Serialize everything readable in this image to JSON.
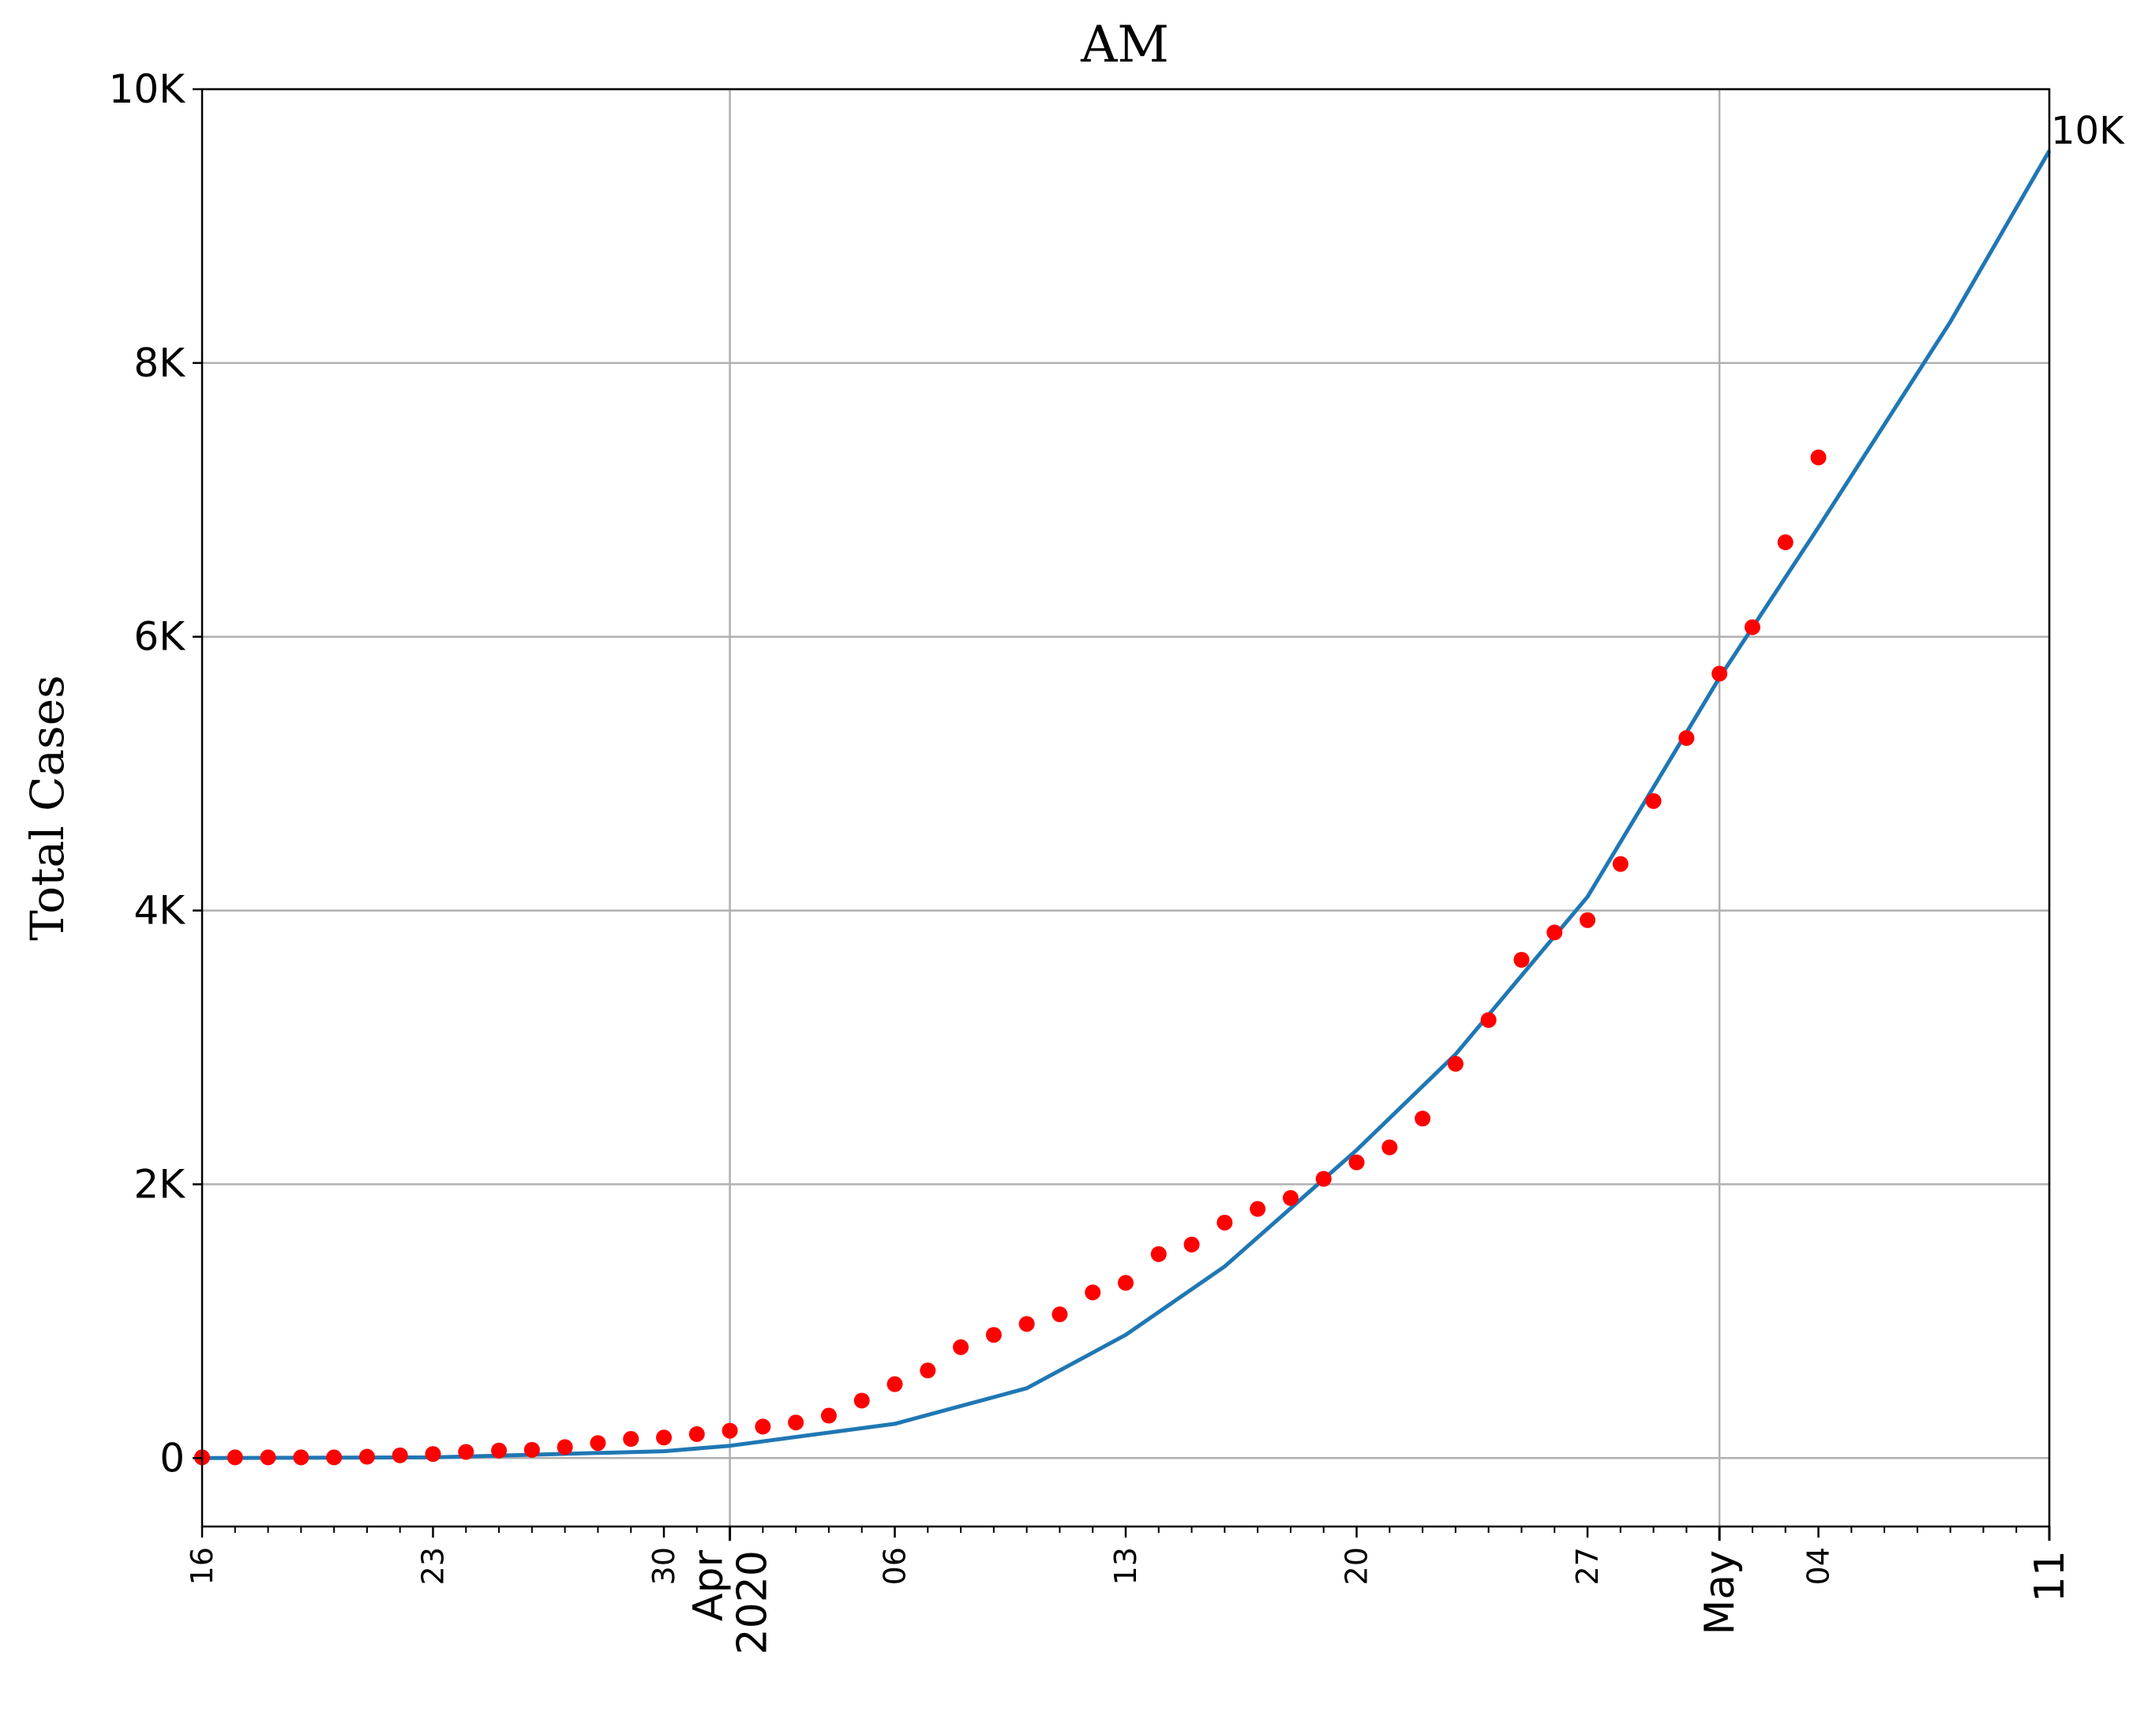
{
  "chart_data": {
    "type": "line",
    "title": "AM",
    "xlabel": "",
    "ylabel": "Total Cases",
    "xlim": [
      "2020-03-16",
      "2020-05-11"
    ],
    "ylim": [
      -500,
      10000
    ],
    "grid": true,
    "yticks": [
      {
        "value": 0,
        "label": "0"
      },
      {
        "value": 2000,
        "label": "2K"
      },
      {
        "value": 4000,
        "label": "4K"
      },
      {
        "value": 6000,
        "label": "6K"
      },
      {
        "value": 8000,
        "label": "8K"
      },
      {
        "value": 10000,
        "label": "10K"
      }
    ],
    "xticks_minor": [
      {
        "date": "2020-03-16",
        "label": "16"
      },
      {
        "date": "2020-03-23",
        "label": "23"
      },
      {
        "date": "2020-03-30",
        "label": "30"
      },
      {
        "date": "2020-04-06",
        "label": "06"
      },
      {
        "date": "2020-04-13",
        "label": "13"
      },
      {
        "date": "2020-04-20",
        "label": "20"
      },
      {
        "date": "2020-04-27",
        "label": "27"
      },
      {
        "date": "2020-05-04",
        "label": "04"
      }
    ],
    "xticks_major": [
      {
        "date": "2020-04-01",
        "label": "Apr\n2020"
      },
      {
        "date": "2020-05-01",
        "label": "May"
      },
      {
        "date": "2020-05-11",
        "label": "11"
      }
    ],
    "end_annotation": "10K",
    "colors": {
      "observed": "#ff0000",
      "model": "#1f77b4",
      "grid": "#b0b0b0"
    },
    "series": [
      {
        "kind": "scatter",
        "start_date": "2020-03-16",
        "values": [
          5,
          5,
          5,
          5,
          5,
          10,
          20,
          30,
          45,
          55,
          60,
          80,
          110,
          140,
          150,
          175,
          200,
          230,
          260,
          310,
          420,
          540,
          640,
          810,
          900,
          980,
          1050,
          1210,
          1280,
          1490,
          1560,
          1720,
          1820,
          1900,
          2040,
          2160,
          2270,
          2480,
          2880,
          3200,
          3640,
          3840,
          3930,
          4340,
          4800,
          5260,
          5730,
          6070,
          6690,
          7310
        ]
      },
      {
        "kind": "line",
        "points": [
          {
            "date": "2020-03-16",
            "value": 0
          },
          {
            "date": "2020-03-23",
            "value": 5
          },
          {
            "date": "2020-03-30",
            "value": 50
          },
          {
            "date": "2020-04-01",
            "value": 90
          },
          {
            "date": "2020-04-06",
            "value": 250
          },
          {
            "date": "2020-04-10",
            "value": 510
          },
          {
            "date": "2020-04-13",
            "value": 900
          },
          {
            "date": "2020-04-16",
            "value": 1400
          },
          {
            "date": "2020-04-20",
            "value": 2250
          },
          {
            "date": "2020-04-23",
            "value": 2950
          },
          {
            "date": "2020-04-27",
            "value": 4100
          },
          {
            "date": "2020-05-01",
            "value": 5700
          },
          {
            "date": "2020-05-04",
            "value": 6800
          },
          {
            "date": "2020-05-08",
            "value": 8300
          },
          {
            "date": "2020-05-11",
            "value": 9550
          }
        ]
      }
    ]
  }
}
